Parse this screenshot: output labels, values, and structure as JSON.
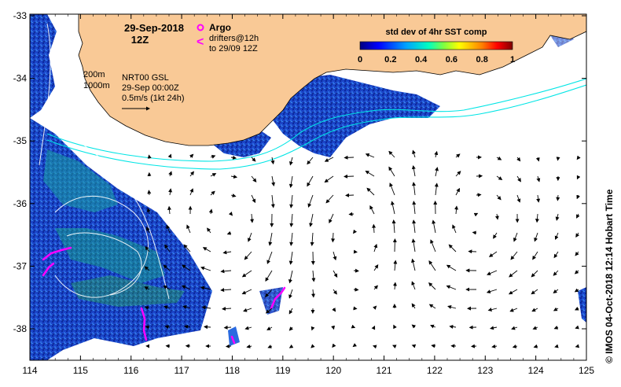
{
  "map": {
    "date_line1": "29-Sep-2018",
    "date_line2": "12Z",
    "legend_argo": "Argo",
    "legend_drifters_line1": "drifters@12h",
    "legend_drifters_line2": "to 29/09 12Z",
    "isobath_200": "200m",
    "isobath_1000": "1000m",
    "velocity_source_line1": "NRT00 GSL",
    "velocity_source_line2": "29-Sep 00:00Z",
    "velocity_scale": "0.5m/s (1kt 24h)",
    "colorbar_title": "std dev of 4hr SST comp",
    "colorbar_ticks": [
      "0",
      "0.2",
      "0.4",
      "0.6",
      "0.8",
      "1"
    ],
    "credit": "© IMOS 04-Oct-2018 12:14 Hobart Time",
    "lat_labels": [
      "-33",
      "-34",
      "-35",
      "-36",
      "-37",
      "-38"
    ],
    "lon_labels": [
      "114",
      "115",
      "116",
      "117",
      "118",
      "119",
      "120",
      "121",
      "122",
      "123",
      "124",
      "125"
    ],
    "colors": {
      "land": "#f9c996",
      "isobath_200": "#00e5e5",
      "isobath_1000": "#00e5e5",
      "argo": "#ff00ff",
      "drifters": "#ff00ff",
      "colorbar": [
        "#000080",
        "#0000ff",
        "#00a0ff",
        "#00ffc0",
        "#80ff40",
        "#ffff00",
        "#ff8000",
        "#ff0000",
        "#800000"
      ]
    }
  }
}
